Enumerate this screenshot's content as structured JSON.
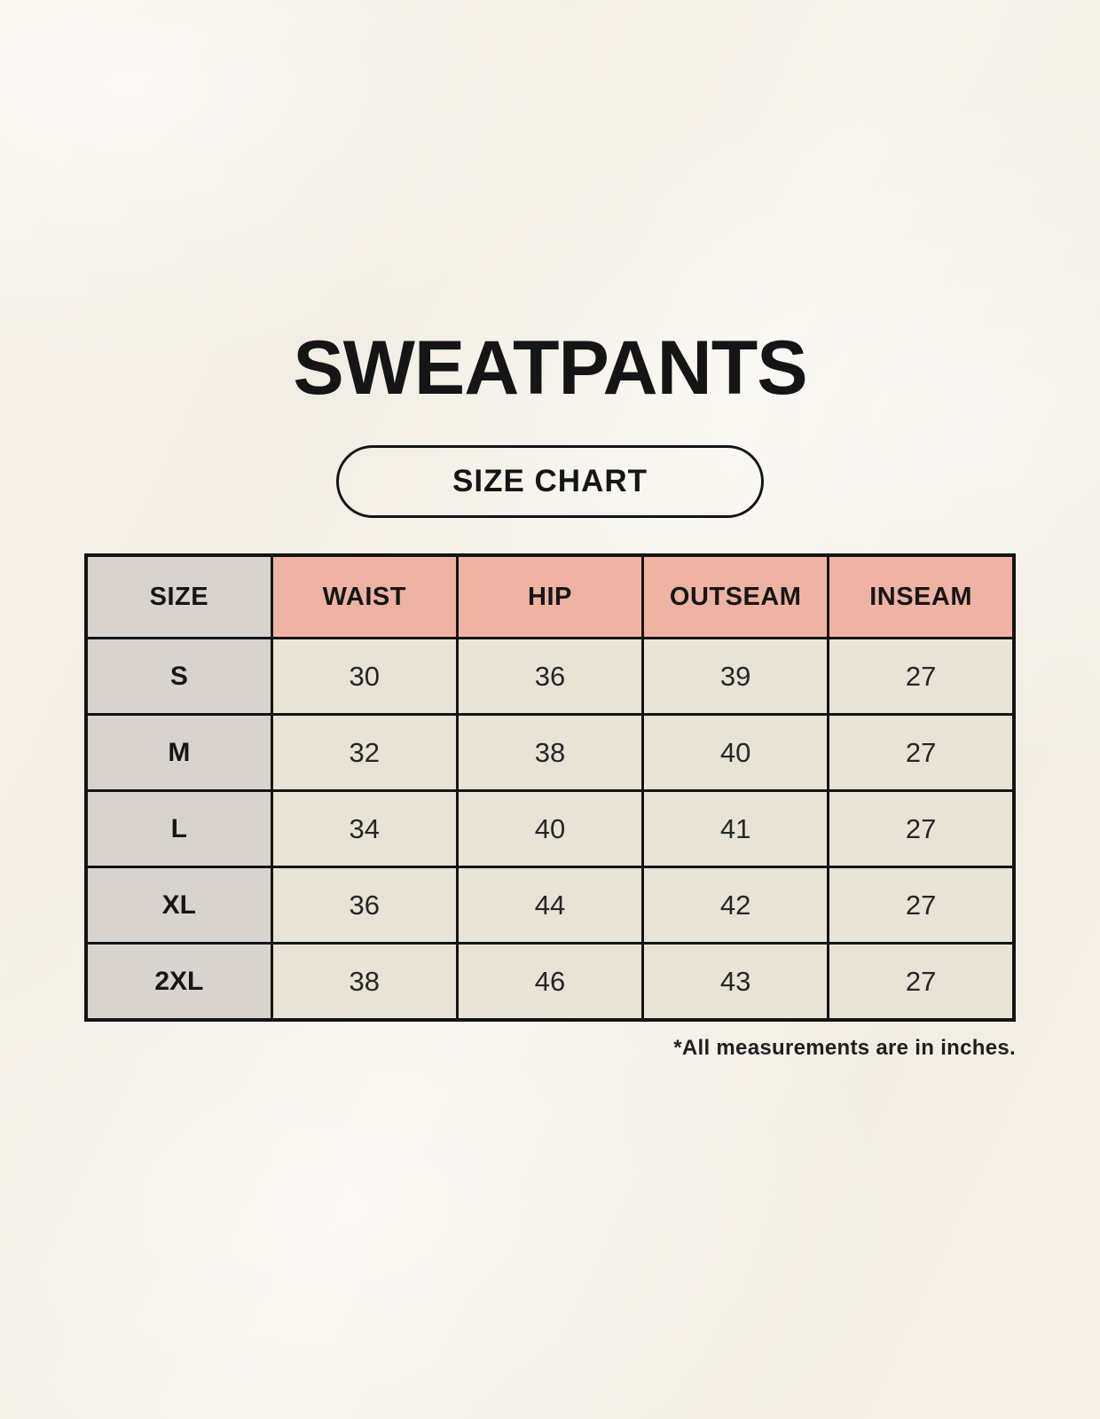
{
  "page": {
    "title": "SWEATPANTS",
    "badge_label": "SIZE CHART",
    "footnote": "*All measurements are in inches."
  },
  "table": {
    "headers": [
      "SIZE",
      "WAIST",
      "HIP",
      "OUTSEAM",
      "INSEAM"
    ],
    "rows": [
      {
        "size": "S",
        "values": [
          "30",
          "36",
          "39",
          "27"
        ]
      },
      {
        "size": "M",
        "values": [
          "32",
          "38",
          "40",
          "27"
        ]
      },
      {
        "size": "L",
        "values": [
          "34",
          "40",
          "41",
          "27"
        ]
      },
      {
        "size": "XL",
        "values": [
          "36",
          "44",
          "42",
          "27"
        ]
      },
      {
        "size": "2XL",
        "values": [
          "38",
          "46",
          "43",
          "27"
        ]
      }
    ]
  },
  "colors": {
    "background_cream": "#f5f1e8",
    "header_pink": "#eeb3a3",
    "size_column_gray": "#d9d3ce",
    "cell_cream": "#e9e3d6",
    "border_black": "#141414",
    "text_black": "#1a1a1a"
  },
  "chart_data": {
    "type": "table",
    "title": "SWEATPANTS",
    "subtitle": "SIZE CHART",
    "columns": [
      "SIZE",
      "WAIST",
      "HIP",
      "OUTSEAM",
      "INSEAM"
    ],
    "rows": [
      [
        "S",
        30,
        36,
        39,
        27
      ],
      [
        "M",
        32,
        38,
        40,
        27
      ],
      [
        "L",
        34,
        40,
        41,
        27
      ],
      [
        "XL",
        36,
        44,
        42,
        27
      ],
      [
        "2XL",
        38,
        46,
        43,
        27
      ]
    ],
    "units": "inches",
    "note": "*All measurements are in inches."
  }
}
